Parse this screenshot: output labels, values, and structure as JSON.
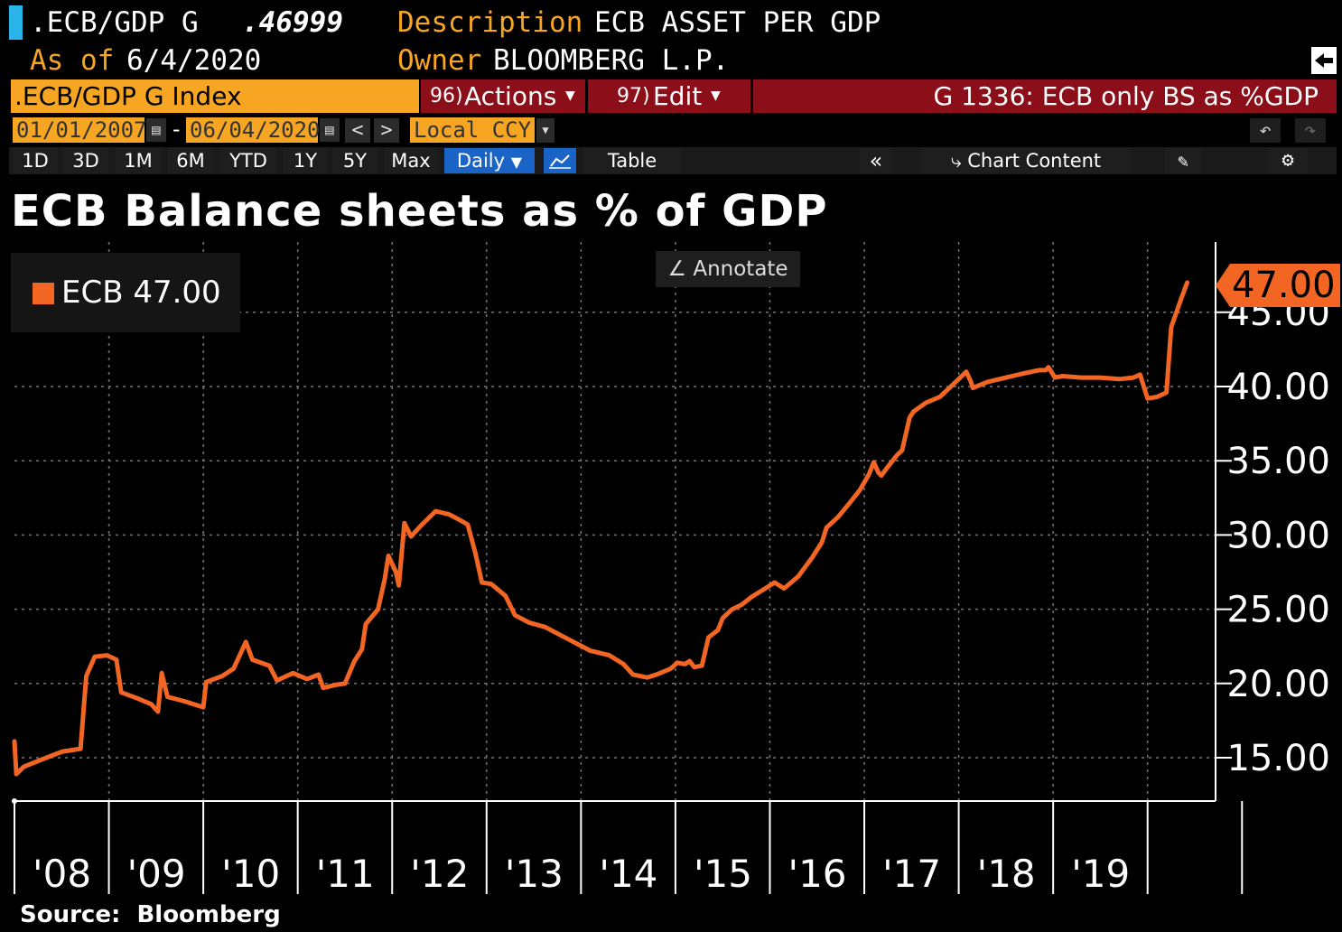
{
  "header": {
    "ticker": ".ECB/GDP G",
    "last_value": ".46999",
    "description_label": "Description",
    "description_value": "ECB ASSET PER GDP",
    "as_of_label": "As of",
    "as_of_date": "6/4/2020",
    "owner_label": "Owner",
    "owner_value": "BLOOMBERG L.P."
  },
  "toolbar": {
    "security": ".ECB/GDP G Index",
    "actions_num": "96)",
    "actions_label": "Actions",
    "edit_num": "97)",
    "edit_label": "Edit",
    "chart_id": "G 1336: ECB only BS as %GDP",
    "start_date": "01/01/2007",
    "date_sep": "-",
    "end_date": "06/04/2020",
    "currency": "Local CCY",
    "periods": [
      "1D",
      "3D",
      "1M",
      "6M",
      "YTD",
      "1Y",
      "5Y",
      "Max"
    ],
    "frequency": "Daily",
    "table_label": "Table",
    "chart_content_label": "Chart Content"
  },
  "legend": {
    "label": "ECB 47.00"
  },
  "annotate_label": "Annotate",
  "last_value_tag": "47.00",
  "source": "Source:  Bloomberg",
  "colors": {
    "series": "#f26522",
    "amber": "#f6a623",
    "red_bar": "#8b0e18",
    "selected": "#1a63c7"
  },
  "chart_data": {
    "type": "line",
    "title": "ECB Balance sheets as % of GDP",
    "xlabel": "",
    "ylabel": "",
    "ylim": [
      12.0,
      47.5
    ],
    "xlim": [
      2007.0,
      2020.5
    ],
    "y_ticks": [
      "15.00",
      "20.00",
      "25.00",
      "30.00",
      "35.00",
      "40.00",
      "45.00"
    ],
    "y_tick_values": [
      15,
      20,
      25,
      30,
      35,
      40,
      45
    ],
    "x_ticks": [
      "'08",
      "'09",
      "'10",
      "'11",
      "'12",
      "'13",
      "'14",
      "'15",
      "'16",
      "'17",
      "'18",
      "'19"
    ],
    "x_tick_values": [
      2008,
      2009,
      2010,
      2011,
      2012,
      2013,
      2014,
      2015,
      2016,
      2017,
      2018,
      2019
    ],
    "grid": true,
    "legend_position": "top-left",
    "series": [
      {
        "name": "ECB",
        "last": 47.0,
        "points": [
          [
            2007.0,
            16.1
          ],
          [
            2007.02,
            13.9
          ],
          [
            2007.1,
            14.4
          ],
          [
            2007.3,
            14.9
          ],
          [
            2007.5,
            15.4
          ],
          [
            2007.7,
            15.6
          ],
          [
            2007.76,
            20.5
          ],
          [
            2007.85,
            21.8
          ],
          [
            2007.98,
            21.9
          ],
          [
            2008.08,
            21.6
          ],
          [
            2008.13,
            19.4
          ],
          [
            2008.3,
            19.0
          ],
          [
            2008.45,
            18.6
          ],
          [
            2008.52,
            18.1
          ],
          [
            2008.56,
            20.7
          ],
          [
            2008.62,
            19.1
          ],
          [
            2008.8,
            18.8
          ],
          [
            2009.0,
            18.4
          ],
          [
            2009.03,
            20.1
          ],
          [
            2009.2,
            20.5
          ],
          [
            2009.32,
            21.0
          ],
          [
            2009.45,
            22.8
          ],
          [
            2009.52,
            21.6
          ],
          [
            2009.7,
            21.2
          ],
          [
            2009.78,
            20.2
          ],
          [
            2009.95,
            20.7
          ],
          [
            2010.1,
            20.3
          ],
          [
            2010.22,
            20.6
          ],
          [
            2010.27,
            19.7
          ],
          [
            2010.4,
            19.9
          ],
          [
            2010.5,
            20.0
          ],
          [
            2010.6,
            21.5
          ],
          [
            2010.68,
            22.3
          ],
          [
            2010.72,
            24.0
          ],
          [
            2010.85,
            25.0
          ],
          [
            2010.92,
            27.0
          ],
          [
            2010.96,
            28.6
          ],
          [
            2011.04,
            27.5
          ],
          [
            2011.07,
            26.6
          ],
          [
            2011.13,
            30.8
          ],
          [
            2011.2,
            29.9
          ],
          [
            2011.3,
            30.6
          ],
          [
            2011.46,
            31.6
          ],
          [
            2011.6,
            31.4
          ],
          [
            2011.72,
            31.0
          ],
          [
            2011.8,
            30.7
          ],
          [
            2011.88,
            28.8
          ],
          [
            2011.95,
            26.8
          ],
          [
            2012.05,
            26.7
          ],
          [
            2012.2,
            25.9
          ],
          [
            2012.3,
            24.6
          ],
          [
            2012.45,
            24.1
          ],
          [
            2012.62,
            23.8
          ],
          [
            2012.8,
            23.2
          ],
          [
            2012.95,
            22.7
          ],
          [
            2013.1,
            22.2
          ],
          [
            2013.3,
            21.9
          ],
          [
            2013.45,
            21.3
          ],
          [
            2013.55,
            20.6
          ],
          [
            2013.7,
            20.4
          ],
          [
            2013.8,
            20.6
          ],
          [
            2013.95,
            21.0
          ],
          [
            2014.02,
            21.4
          ],
          [
            2014.1,
            21.3
          ],
          [
            2014.15,
            21.5
          ],
          [
            2014.2,
            21.1
          ],
          [
            2014.28,
            21.2
          ],
          [
            2014.35,
            23.1
          ],
          [
            2014.45,
            23.6
          ],
          [
            2014.5,
            24.4
          ],
          [
            2014.6,
            25.0
          ],
          [
            2014.7,
            25.3
          ],
          [
            2014.8,
            25.8
          ],
          [
            2014.95,
            26.4
          ],
          [
            2015.05,
            26.8
          ],
          [
            2015.15,
            26.4
          ],
          [
            2015.3,
            27.2
          ],
          [
            2015.45,
            28.5
          ],
          [
            2015.55,
            29.5
          ],
          [
            2015.6,
            30.5
          ],
          [
            2015.72,
            31.2
          ],
          [
            2015.85,
            32.2
          ],
          [
            2015.95,
            33.0
          ],
          [
            2016.05,
            34.1
          ],
          [
            2016.1,
            34.9
          ],
          [
            2016.15,
            34.2
          ],
          [
            2016.18,
            34.0
          ],
          [
            2016.25,
            34.6
          ],
          [
            2016.35,
            35.4
          ],
          [
            2016.4,
            35.7
          ],
          [
            2016.48,
            37.9
          ],
          [
            2016.52,
            38.3
          ],
          [
            2016.65,
            38.9
          ],
          [
            2016.8,
            39.3
          ],
          [
            2016.95,
            40.2
          ],
          [
            2017.08,
            41.0
          ],
          [
            2017.13,
            40.3
          ],
          [
            2017.15,
            39.9
          ],
          [
            2017.3,
            40.3
          ],
          [
            2017.5,
            40.6
          ],
          [
            2017.7,
            40.9
          ],
          [
            2017.85,
            41.1
          ],
          [
            2017.92,
            41.1
          ],
          [
            2017.95,
            41.3
          ],
          [
            2018.02,
            40.6
          ],
          [
            2018.1,
            40.7
          ],
          [
            2018.3,
            40.6
          ],
          [
            2018.5,
            40.6
          ],
          [
            2018.7,
            40.5
          ],
          [
            2018.85,
            40.6
          ],
          [
            2018.92,
            40.8
          ],
          [
            2019.0,
            39.2
          ],
          [
            2019.1,
            39.3
          ],
          [
            2019.2,
            39.6
          ],
          [
            2019.25,
            44.0
          ],
          [
            2019.35,
            45.8
          ],
          [
            2019.42,
            47.0
          ]
        ]
      }
    ]
  }
}
